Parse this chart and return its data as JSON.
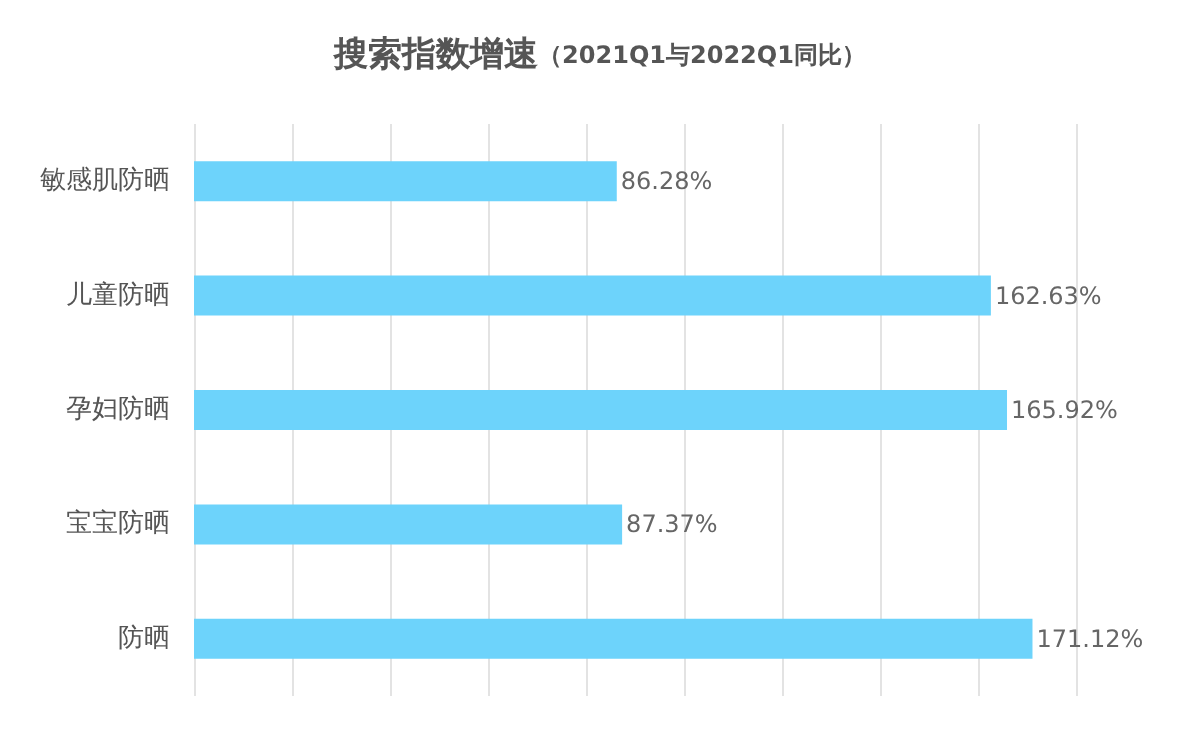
{
  "chart_data": {
    "type": "bar",
    "orientation": "horizontal",
    "title": "搜索指数增速",
    "subtitle": "（2021Q1与2022Q1同比）",
    "categories": [
      "敏感肌防晒",
      "儿童防晒",
      "孕妇防晒",
      "宝宝防晒",
      "防晒"
    ],
    "values": [
      86.28,
      162.63,
      165.92,
      87.37,
      171.12
    ],
    "value_labels": [
      "86.28%",
      "162.63%",
      "165.92%",
      "87.37%",
      "171.12%"
    ],
    "color": "#6dd3fb",
    "xlim": [
      0,
      180
    ],
    "xticks": [
      {
        "value": 0,
        "label": null
      },
      {
        "value": 20,
        "label": null
      },
      {
        "value": 40,
        "label": null
      },
      {
        "value": 60,
        "label": null
      },
      {
        "value": 80,
        "label": null
      },
      {
        "value": 100,
        "label": null
      },
      {
        "value": 120,
        "label": null
      },
      {
        "value": 140,
        "label": null
      },
      {
        "value": 160,
        "label": null
      },
      {
        "value": 180,
        "label": null
      }
    ],
    "tick_labels": "y",
    "grid": "x"
  }
}
